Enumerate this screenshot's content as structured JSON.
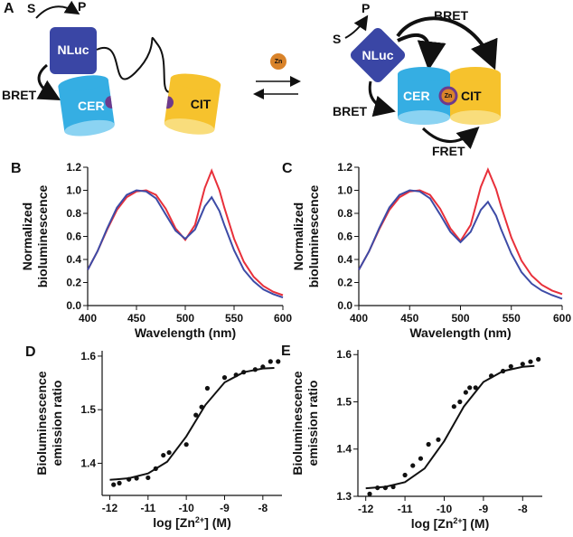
{
  "diagram": {
    "panel": "A",
    "left": {
      "s": "S",
      "p": "P",
      "nluc": "NLuc",
      "bret": "BRET",
      "cer": "CER",
      "cit": "CIT"
    },
    "zn": "Zn",
    "right": {
      "s": "S",
      "p": "P",
      "nluc": "NLuc",
      "bret_top": "BRET",
      "bret_left": "BRET",
      "cer": "CER",
      "zn": "Zn",
      "cit": "CIT",
      "fret": "FRET"
    }
  },
  "chart_data": [
    {
      "type": "line",
      "panel": "B",
      "ylabel": [
        "Normalized",
        "bioluminescence"
      ],
      "xlabel": "Wavelength (nm)",
      "x": [
        400,
        410,
        420,
        430,
        440,
        450,
        460,
        470,
        480,
        490,
        500,
        510,
        520,
        527,
        535,
        540,
        550,
        560,
        570,
        580,
        590,
        600
      ],
      "series": [
        {
          "color": "#e8303a",
          "mode": "line",
          "values": [
            0.31,
            0.47,
            0.66,
            0.83,
            0.94,
            0.99,
            1.0,
            0.96,
            0.84,
            0.67,
            0.57,
            0.7,
            1.02,
            1.17,
            1.0,
            0.85,
            0.58,
            0.38,
            0.25,
            0.17,
            0.12,
            0.09
          ]
        },
        {
          "color": "#3d4ba6",
          "mode": "line",
          "values": [
            0.31,
            0.47,
            0.67,
            0.85,
            0.96,
            1.0,
            0.99,
            0.93,
            0.79,
            0.65,
            0.58,
            0.66,
            0.86,
            0.94,
            0.82,
            0.7,
            0.48,
            0.31,
            0.21,
            0.14,
            0.1,
            0.07
          ]
        }
      ],
      "xlim": [
        400,
        600
      ],
      "xticks": [
        400,
        450,
        500,
        550,
        600
      ],
      "ylim": [
        0,
        1.2
      ],
      "yticks": [
        {
          "value": 0,
          "label": "0.0"
        },
        0.2,
        0.4,
        0.6,
        0.8,
        {
          "value": 1,
          "label": "1.0"
        },
        1.2
      ]
    },
    {
      "type": "line",
      "panel": "C",
      "ylabel": [
        "Normalized",
        "bioluminescence"
      ],
      "xlabel": "Wavelength (nm)",
      "x": [
        400,
        410,
        420,
        430,
        440,
        450,
        460,
        470,
        480,
        490,
        500,
        510,
        520,
        527,
        535,
        540,
        550,
        560,
        570,
        580,
        590,
        600
      ],
      "series": [
        {
          "color": "#e8303a",
          "mode": "line",
          "values": [
            0.31,
            0.47,
            0.66,
            0.83,
            0.94,
            0.99,
            1.0,
            0.96,
            0.84,
            0.67,
            0.56,
            0.7,
            1.03,
            1.18,
            1.01,
            0.86,
            0.59,
            0.39,
            0.26,
            0.18,
            0.13,
            0.1
          ]
        },
        {
          "color": "#3d4ba6",
          "mode": "line",
          "values": [
            0.31,
            0.47,
            0.67,
            0.85,
            0.96,
            1.0,
            0.99,
            0.93,
            0.79,
            0.64,
            0.55,
            0.64,
            0.83,
            0.9,
            0.78,
            0.66,
            0.45,
            0.29,
            0.19,
            0.13,
            0.09,
            0.06
          ]
        }
      ],
      "xlim": [
        400,
        600
      ],
      "xticks": [
        400,
        450,
        500,
        550,
        600
      ],
      "ylim": [
        0,
        1.2
      ],
      "yticks": [
        {
          "value": 0,
          "label": "0.0"
        },
        0.2,
        0.4,
        0.6,
        0.8,
        {
          "value": 1,
          "label": "1.0"
        },
        1.2
      ]
    },
    {
      "type": "scatter",
      "panel": "D",
      "ylabel": [
        "Bioluminescence",
        "emission ratio"
      ],
      "xlabel": [
        "log [Zn",
        "2+",
        "] (M)"
      ],
      "series": [
        {
          "color": "#111111",
          "mode": "markers",
          "x": [
            -11.9,
            -11.75,
            -11.5,
            -11.3,
            -11.0,
            -10.8,
            -10.6,
            -10.45,
            -10.0,
            -9.75,
            -9.6,
            -9.45,
            -9.0,
            -8.7,
            -8.5,
            -8.2,
            -8.0,
            -7.8,
            -7.6
          ],
          "values": [
            1.36,
            1.363,
            1.37,
            1.372,
            1.373,
            1.39,
            1.415,
            1.42,
            1.435,
            1.49,
            1.505,
            1.54,
            1.56,
            1.565,
            1.57,
            1.575,
            1.58,
            1.59,
            1.59
          ]
        },
        {
          "color": "#111111",
          "mode": "line",
          "x": [
            -12,
            -11.5,
            -11,
            -10.5,
            -10,
            -9.5,
            -9,
            -8.5,
            -8,
            -7.7
          ],
          "values": [
            1.369,
            1.372,
            1.381,
            1.403,
            1.45,
            1.509,
            1.551,
            1.57,
            1.577,
            1.578
          ]
        }
      ],
      "xlim": [
        -12.2,
        -7.5
      ],
      "xticks": [
        -12,
        -11,
        -10,
        -9,
        -8
      ],
      "ylim": [
        1.34,
        1.61
      ],
      "yticks": [
        1.4,
        1.5,
        1.6
      ]
    },
    {
      "type": "scatter",
      "panel": "E",
      "ylabel": [
        "Bioluminescence",
        "emission ratio"
      ],
      "xlabel": [
        "log [Zn",
        "2+",
        "] (M)"
      ],
      "series": [
        {
          "color": "#111111",
          "mode": "markers",
          "x": [
            -11.9,
            -11.7,
            -11.5,
            -11.3,
            -11.0,
            -10.8,
            -10.6,
            -10.4,
            -10.15,
            -9.75,
            -9.6,
            -9.45,
            -9.35,
            -9.2,
            -8.8,
            -8.5,
            -8.3,
            -8.0,
            -7.8,
            -7.6
          ],
          "values": [
            1.305,
            1.318,
            1.318,
            1.32,
            1.345,
            1.365,
            1.38,
            1.41,
            1.42,
            1.49,
            1.5,
            1.52,
            1.53,
            1.53,
            1.555,
            1.565,
            1.575,
            1.58,
            1.585,
            1.59
          ]
        },
        {
          "color": "#111111",
          "mode": "line",
          "x": [
            -12,
            -11.5,
            -11,
            -10.5,
            -10,
            -9.5,
            -9,
            -8.5,
            -8,
            -7.7
          ],
          "values": [
            1.317,
            1.32,
            1.33,
            1.359,
            1.417,
            1.49,
            1.542,
            1.565,
            1.574,
            1.576
          ]
        }
      ],
      "xlim": [
        -12.2,
        -7.5
      ],
      "xticks": [
        -12,
        -11,
        -10,
        -9,
        -8
      ],
      "ylim": [
        1.3,
        1.61
      ],
      "yticks": [
        1.3,
        1.4,
        1.5,
        1.6
      ]
    }
  ]
}
